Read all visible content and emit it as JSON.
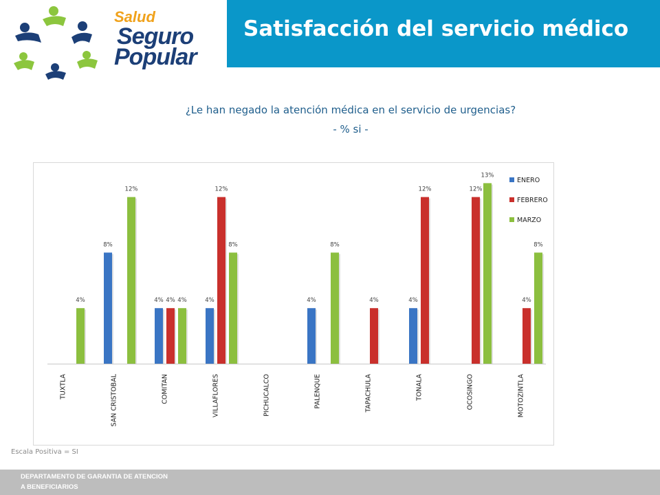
{
  "header": {
    "logo": {
      "line1": "Salud",
      "line2": "Seguro",
      "line3": "Popular"
    },
    "title": "Satisfacción del servicio médico"
  },
  "question": {
    "line1": "¿Le han negado la atención médica en el servicio de urgencias?",
    "line2": "- % si -"
  },
  "scale_note": "Escala Positiva = SI",
  "footer": {
    "line1": "DEPARTAMENTO  DE GARANTIA DE ATENCION",
    "line2": "A BENEFICIARIOS"
  },
  "colors": {
    "enero": "#3a75c4",
    "febrero": "#c9302c",
    "marzo": "#8cbf3f",
    "title_bar": "#0a97c9"
  },
  "chart_data": {
    "type": "bar",
    "categories": [
      "TUXTLA",
      "SAN CRISTOBAL",
      "COMITAN",
      "VILLAFLORES",
      "PICHUCALCO",
      "PALENQUE",
      "TAPACHULA",
      "TONALA",
      "OCOSINGO",
      "MOTOZINTLA"
    ],
    "series": [
      {
        "name": "ENERO",
        "color": "#3a75c4",
        "values": [
          null,
          8,
          4,
          4,
          null,
          4,
          null,
          4,
          null,
          null
        ]
      },
      {
        "name": "FEBRERO",
        "color": "#c9302c",
        "values": [
          null,
          null,
          4,
          12,
          null,
          null,
          4,
          12,
          12,
          4
        ]
      },
      {
        "name": "MARZO",
        "color": "#8cbf3f",
        "values": [
          4,
          12,
          4,
          8,
          null,
          8,
          null,
          null,
          13,
          8
        ]
      }
    ],
    "data_labels": [
      [
        "",
        "8%",
        "4%",
        "4%",
        "",
        "4%",
        "",
        "4%",
        "",
        ""
      ],
      [
        "",
        "",
        "4%",
        "12%",
        "",
        "",
        "4%",
        "12%",
        "12%",
        "4%"
      ],
      [
        "4%",
        "12%",
        "4%",
        "8%",
        "",
        "8%",
        "",
        "",
        "13%",
        "8%"
      ]
    ],
    "ylim": [
      0,
      14
    ],
    "legend_position": "right"
  }
}
